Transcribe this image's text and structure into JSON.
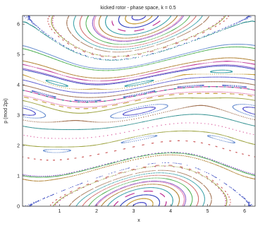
{
  "chart_data": {
    "type": "line",
    "title": "kicked rotor - phase space, k = 0.5",
    "xlabel": "x",
    "ylabel": "p (mod 2pi)",
    "xlim": [
      0,
      6.2832
    ],
    "ylim": [
      0,
      6.2832
    ],
    "xticks": [
      "1",
      "2",
      "3",
      "4",
      "5",
      "6"
    ],
    "yticks": [
      "0",
      "1",
      "2",
      "3",
      "4",
      "5",
      "6"
    ],
    "grid": false,
    "k": 0.5,
    "islands": [
      {
        "center": [
          3.1416,
          0.0
        ]
      },
      {
        "center": [
          3.1416,
          6.2832
        ]
      },
      {
        "center": [
          0.0,
          3.1416
        ]
      },
      {
        "center": [
          6.2832,
          3.1416
        ]
      }
    ]
  },
  "colors": {
    "palette": [
      "#3b4cc0",
      "#c03b9a",
      "#3aa0a8",
      "#b08030",
      "#8f5fc8",
      "#4caf50",
      "#d06a6a",
      "#6a8fd0",
      "#9aa03a",
      "#e07bb0",
      "#2f8f8f",
      "#a07050",
      "#5a5ad0",
      "#c8a040"
    ],
    "axes": "#333333",
    "background": "#ffffff"
  }
}
